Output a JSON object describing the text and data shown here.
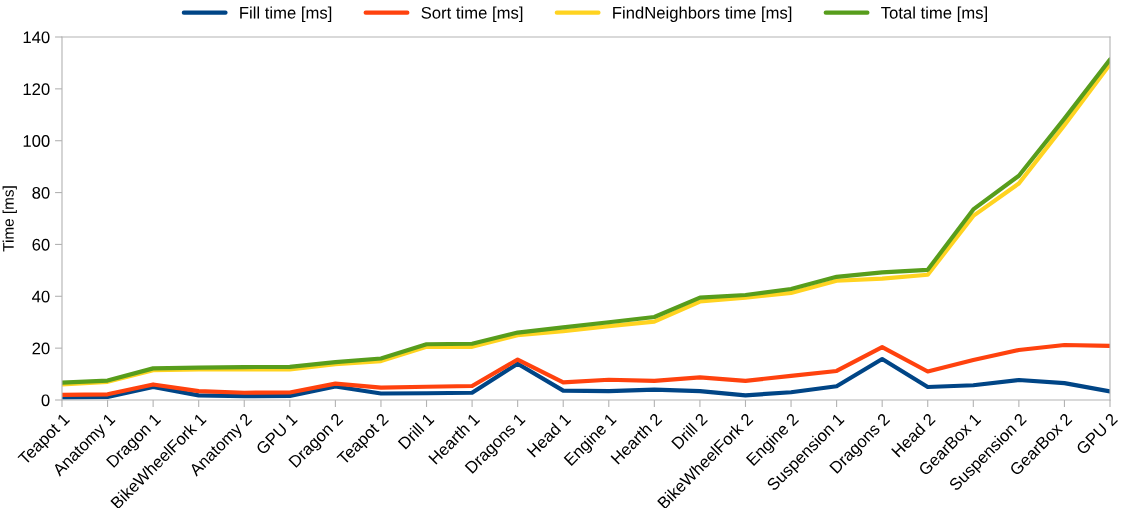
{
  "chart_data": {
    "type": "line",
    "ylabel": "Time [ms]",
    "categories": [
      "Teapot 1",
      "Anatomy 1",
      "Dragon 1",
      "BikeWheelFork 1",
      "Anatomy 2",
      "GPU 1",
      "Dragon 2",
      "Teapot 2",
      "Drill 1",
      "Hearth 1",
      "Dragons 1",
      "Head 1",
      "Engine 1",
      "Hearth 2",
      "Drill 2",
      "BikeWheelFork 2",
      "Engine 2",
      "Suspension 1",
      "Dragons 2",
      "Head 2",
      "GearBox 1",
      "Suspension 2",
      "GearBox 2",
      "GPU 2"
    ],
    "series": [
      {
        "name": "Fill time [ms]",
        "color": "#004586",
        "values": [
          1.0,
          1.2,
          5.0,
          1.8,
          1.5,
          1.6,
          5.2,
          2.5,
          2.6,
          2.8,
          14,
          3.6,
          3.4,
          4,
          3.4,
          1.8,
          3,
          5.3,
          15.8,
          5,
          5.7,
          7.7,
          6.5,
          3.3
        ]
      },
      {
        "name": "Sort time [ms]",
        "color": "#ff420e",
        "values": [
          2,
          2.2,
          6,
          3.4,
          2.8,
          2.9,
          6.3,
          4.8,
          5.1,
          5.4,
          15.6,
          6.8,
          7.8,
          7.4,
          8.7,
          7.4,
          9.3,
          11.2,
          20.4,
          11,
          15.4,
          19.3,
          21.2,
          20.9
        ]
      },
      {
        "name": "FindNeighbors time [ms]",
        "color": "#ffd320",
        "values": [
          6,
          7,
          11.5,
          11.8,
          11.8,
          11.8,
          13.8,
          15,
          20.5,
          20.5,
          25,
          26.5,
          28.5,
          30.2,
          38,
          39.5,
          41.3,
          46,
          46.8,
          48.3,
          71,
          83.5,
          106,
          129.5
        ]
      },
      {
        "name": "Total time [ms]",
        "color": "#579d1c",
        "values": [
          6.7,
          7.5,
          12.2,
          12.5,
          12.7,
          12.8,
          14.6,
          16,
          21.5,
          21.7,
          26,
          28,
          30,
          32,
          39.5,
          40.5,
          42.8,
          47.5,
          49.2,
          50.2,
          73.5,
          86.5,
          108.5,
          131.3
        ]
      }
    ],
    "ylim": [
      0,
      140
    ],
    "yticks": [
      0,
      20,
      40,
      60,
      80,
      100,
      120,
      140
    ],
    "legend": "top",
    "marker": "none",
    "line_style": "solid"
  }
}
